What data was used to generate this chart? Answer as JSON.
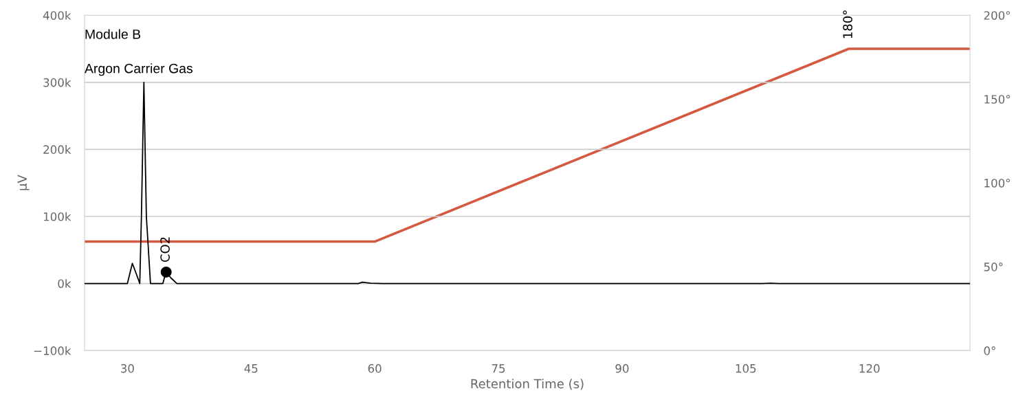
{
  "chart_data": {
    "type": "line",
    "xlabel": "Retention Time (s)",
    "ylabel": "µV",
    "annotations": [
      "Module B",
      "Argon Carrier Gas",
      {
        "text": "CO2",
        "x": 34.7,
        "y": 17000
      },
      {
        "text": "180°",
        "x": 117.5,
        "y": 350000
      }
    ],
    "series": [
      {
        "color": "#000000",
        "x": [
          24.8,
          30.0,
          30.6,
          31.0,
          31.5,
          31.7,
          32.0,
          32.3,
          32.8,
          34.3,
          34.5,
          34.7,
          35.3,
          36.0,
          58.0,
          58.5,
          59.5,
          61.0,
          107.0,
          108.0,
          109.0,
          132.2
        ],
        "values": [
          0,
          0,
          30000,
          17000,
          0,
          100000,
          300000,
          100000,
          0,
          0,
          9000,
          17000,
          8000,
          0,
          0,
          2000,
          500,
          0,
          0,
          500,
          0,
          0
        ]
      },
      {
        "type": "scatter",
        "marker": "circle",
        "color": "#000000",
        "x": [
          34.7
        ],
        "values": [
          17000
        ]
      },
      {
        "type": "line",
        "axis": "y2",
        "color": "#d35a40",
        "x": [
          24.8,
          60.0,
          117.5,
          132.2
        ],
        "values": [
          65,
          65,
          180,
          180
        ]
      }
    ],
    "xlim": [
      24.8,
      132.2
    ],
    "xticks": [
      30,
      45,
      60,
      75,
      90,
      105,
      120
    ],
    "ylim": [
      -100000,
      400000
    ],
    "yticks": [
      {
        "value": -100000,
        "label": "−100k"
      },
      {
        "value": 0,
        "label": "0k"
      },
      {
        "value": 100000,
        "label": "100k"
      },
      {
        "value": 200000,
        "label": "200k"
      },
      {
        "value": 300000,
        "label": "300k"
      },
      {
        "value": 400000,
        "label": "400k"
      }
    ],
    "y2lim": [
      0,
      200
    ],
    "y2ticks": [
      {
        "value": 0,
        "label": "0°"
      },
      {
        "value": 50,
        "label": "50°"
      },
      {
        "value": 100,
        "label": "100°"
      },
      {
        "value": 150,
        "label": "150°"
      },
      {
        "value": 200,
        "label": "200°"
      }
    ],
    "grid": "y",
    "marker": "none",
    "line_style": "solid",
    "legend": false
  }
}
